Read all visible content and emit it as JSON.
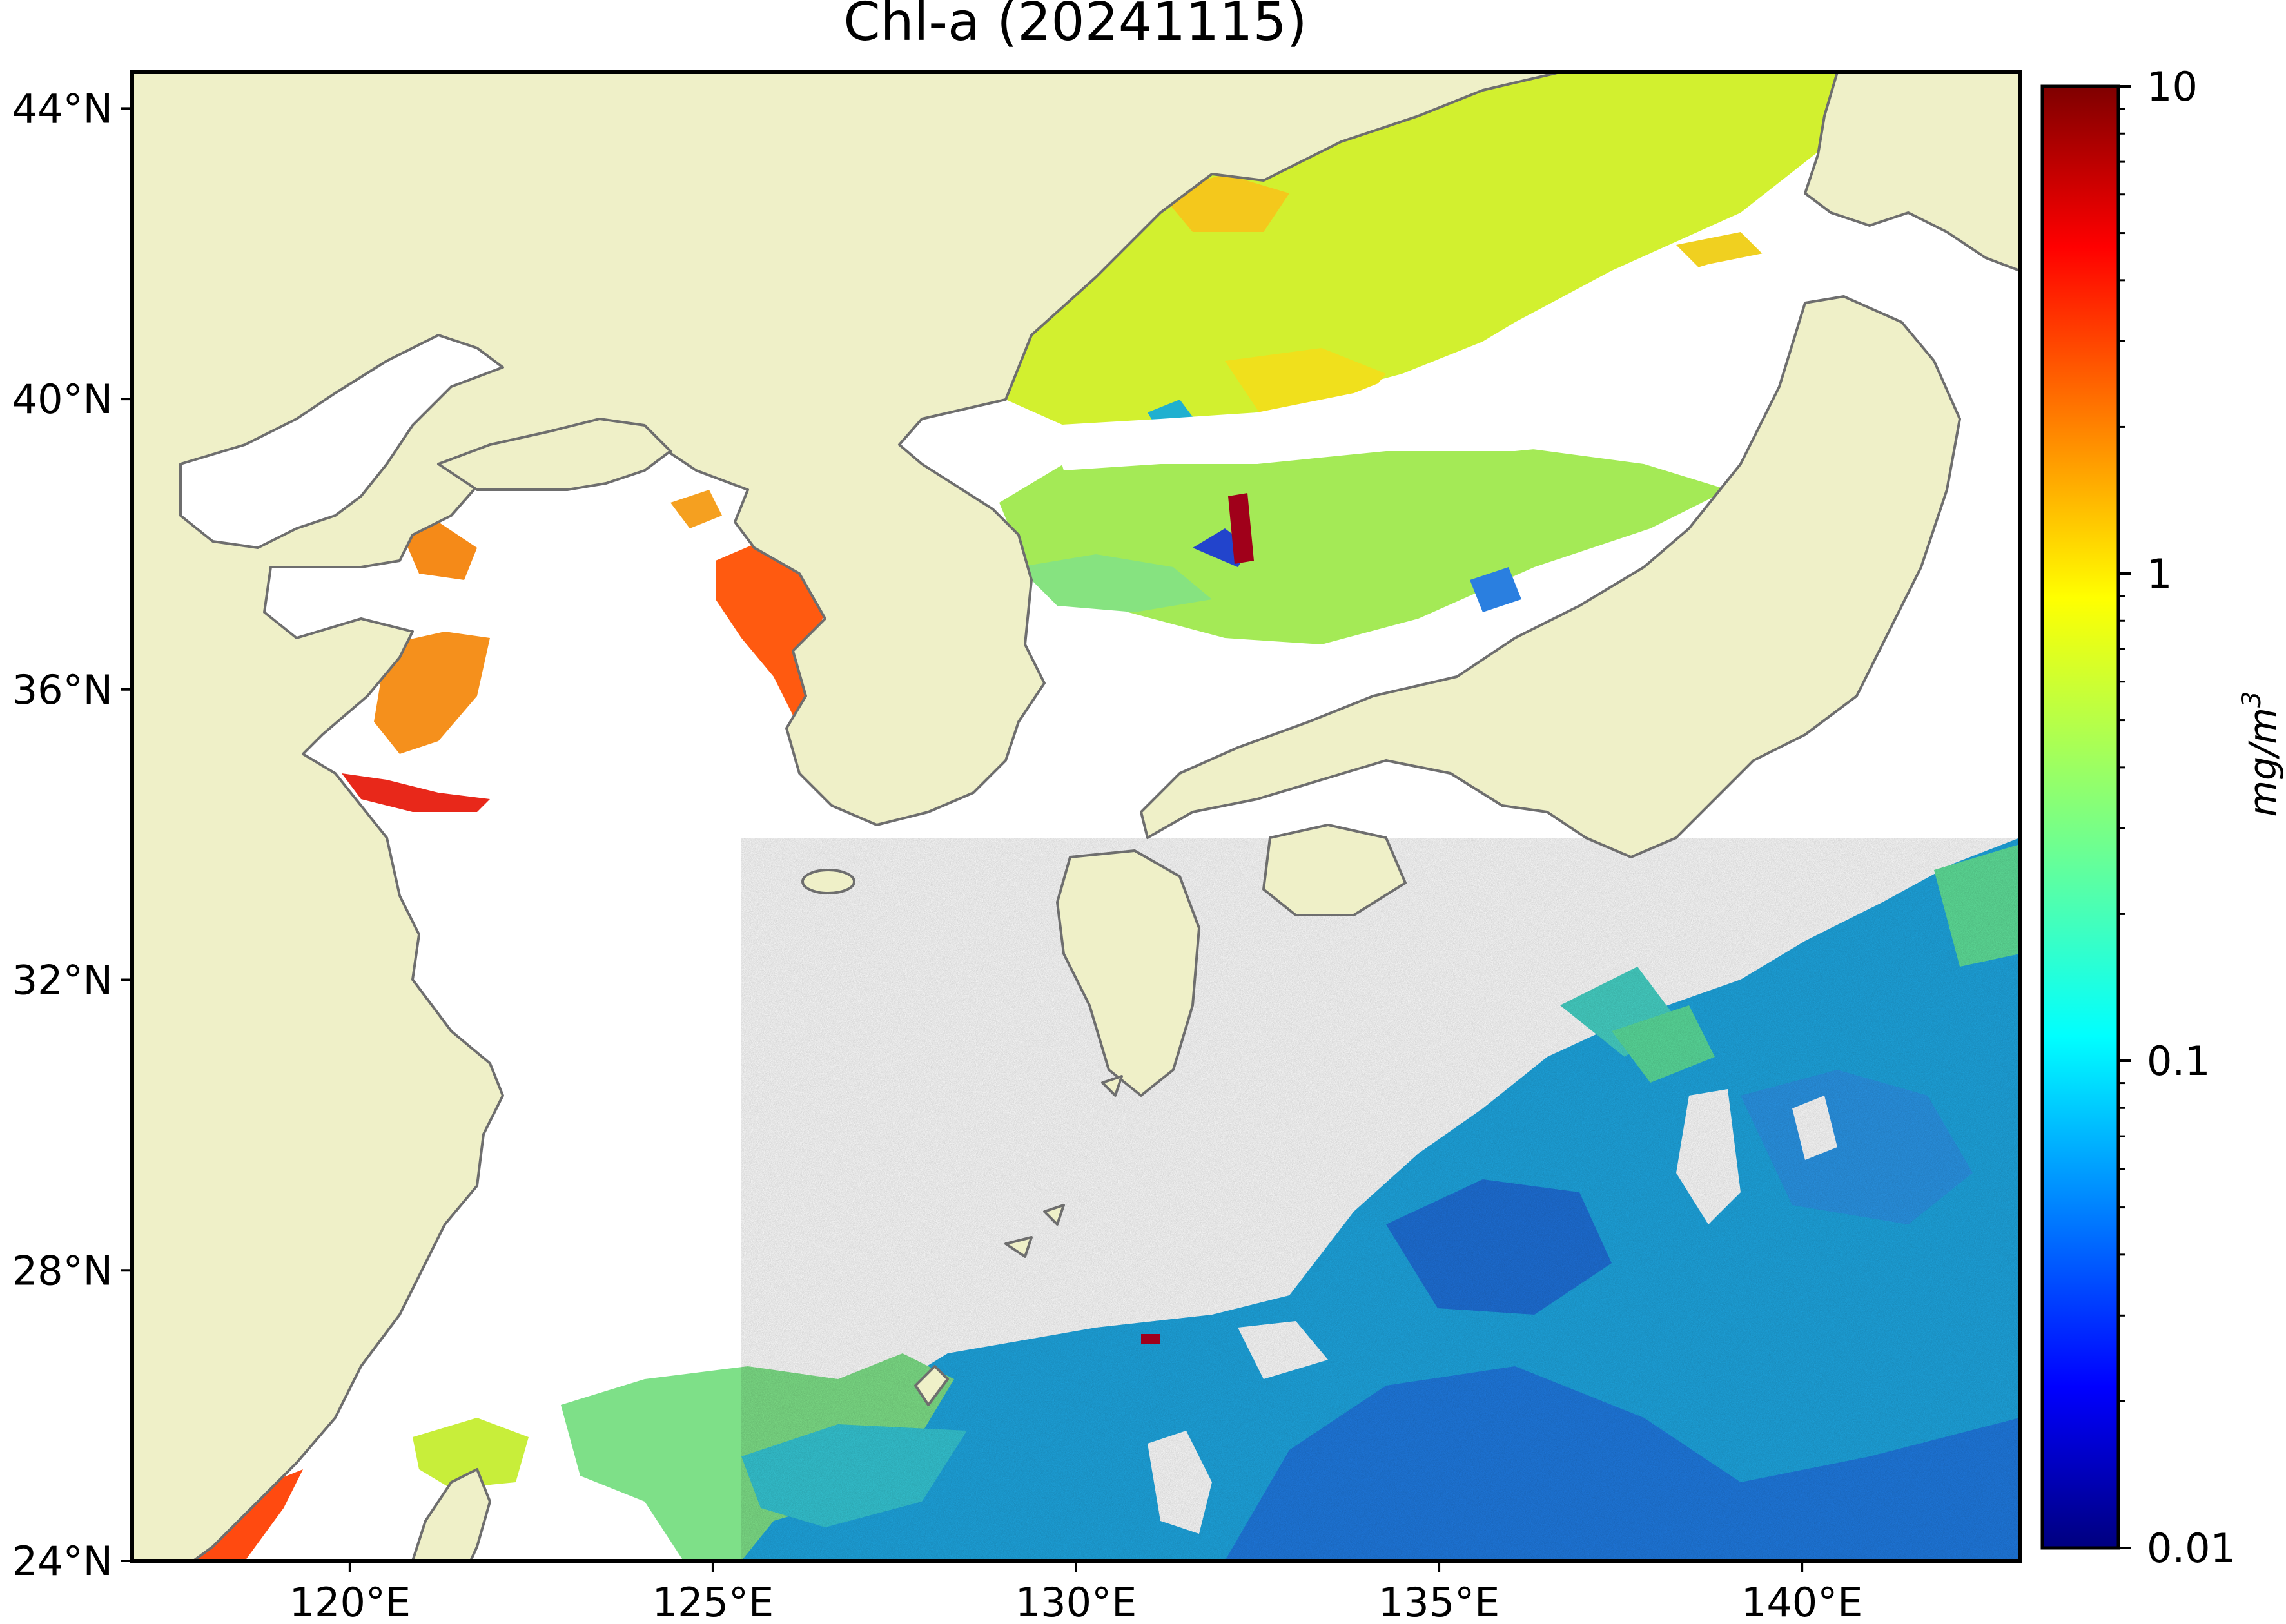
{
  "map": {
    "title": "Chl-a (20241115)",
    "variable": "Chlorophyll-a concentration",
    "lon_range": [
      117,
      143
    ],
    "lat_range": [
      24,
      44.5
    ],
    "x_ticks": [
      {
        "value": 120,
        "label": "120°E"
      },
      {
        "value": 125,
        "label": "125°E"
      },
      {
        "value": 130,
        "label": "130°E"
      },
      {
        "value": 135,
        "label": "135°E"
      },
      {
        "value": 140,
        "label": "140°E"
      }
    ],
    "y_ticks": [
      {
        "value": 24,
        "label": "24°N"
      },
      {
        "value": 28,
        "label": "28°N"
      },
      {
        "value": 32,
        "label": "32°N"
      },
      {
        "value": 36,
        "label": "36°N"
      },
      {
        "value": 40,
        "label": "40°N"
      },
      {
        "value": 44,
        "label": "44°N"
      }
    ],
    "colors": {
      "land": "#eff0c8",
      "coastline": "#6e6e6e",
      "no_data": "#ffffff",
      "frame": "#000000"
    }
  },
  "colorbar": {
    "label_main": "mg/m",
    "label_sup": "3",
    "scale": "log",
    "range": [
      0.01,
      10
    ],
    "colormap": "jet",
    "ticks": [
      {
        "value": 10,
        "label": "10"
      },
      {
        "value": 1,
        "label": "1"
      },
      {
        "value": 0.1,
        "label": "0.1"
      },
      {
        "value": 0.01,
        "label": "0.01"
      }
    ],
    "stops": [
      "#00007f",
      "#0000ff",
      "#007fff",
      "#00ffff",
      "#7fff7f",
      "#ffff00",
      "#ff7f00",
      "#ff0000",
      "#7f0000"
    ]
  }
}
